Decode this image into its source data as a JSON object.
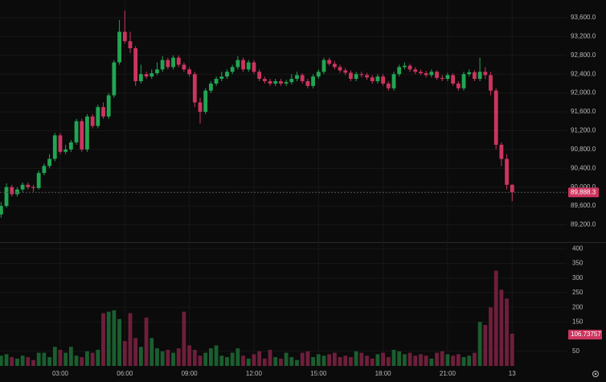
{
  "chart_data": {
    "type": "candlestick",
    "up_color": "#22a553",
    "down_color": "#cc355f",
    "x": [
      0.25,
      0.5,
      0.75,
      1,
      1.25,
      1.5,
      1.75,
      2,
      2.25,
      2.5,
      2.75,
      3,
      3.25,
      3.5,
      3.75,
      4,
      4.25,
      4.5,
      4.75,
      5,
      5.25,
      5.5,
      5.75,
      6,
      6.25,
      6.5,
      6.75,
      7,
      7.25,
      7.5,
      7.75,
      8,
      8.25,
      8.5,
      8.75,
      9,
      9.25,
      9.5,
      9.75,
      10,
      10.25,
      10.5,
      10.75,
      11,
      11.25,
      11.5,
      11.75,
      12,
      12.25,
      12.5,
      12.75,
      13,
      13.25,
      13.5,
      13.75,
      14,
      14.25,
      14.5,
      14.75,
      15,
      15.25,
      15.5,
      15.75,
      16,
      16.25,
      16.5,
      16.75,
      17,
      17.25,
      17.5,
      17.75,
      18,
      18.25,
      18.5,
      18.75,
      19,
      19.25,
      19.5,
      19.75,
      20,
      20.25,
      20.5,
      20.75,
      21,
      21.25,
      21.5,
      21.75,
      22,
      22.25,
      22.5,
      22.75,
      23,
      23.25,
      23.5,
      23.75,
      24
    ],
    "open": [
      89420,
      89600,
      90000,
      89850,
      89950,
      90050,
      90000,
      89980,
      90300,
      90450,
      90600,
      91100,
      90750,
      90800,
      90950,
      91400,
      90800,
      91500,
      91300,
      91700,
      91500,
      91950,
      92650,
      93300,
      93100,
      92950,
      92250,
      92400,
      92350,
      92420,
      92500,
      92700,
      92550,
      92750,
      92600,
      92500,
      92400,
      91800,
      91600,
      92050,
      92200,
      92300,
      92350,
      92450,
      92550,
      92700,
      92500,
      92650,
      92450,
      92300,
      92250,
      92200,
      92250,
      92200,
      92230,
      92300,
      92380,
      92250,
      92150,
      92350,
      92450,
      92700,
      92620,
      92550,
      92480,
      92430,
      92300,
      92400,
      92380,
      92330,
      92250,
      92350,
      92200,
      92100,
      92400,
      92550,
      92580,
      92500,
      92450,
      92420,
      92380,
      92450,
      92320,
      92300,
      92380,
      92200,
      92100,
      92400,
      92440,
      92300,
      92450,
      92380,
      92050,
      90900,
      90600,
      90050
    ],
    "high": [
      89680,
      90080,
      90050,
      90000,
      90100,
      90100,
      90050,
      90350,
      90500,
      90700,
      91150,
      91150,
      90900,
      91000,
      91450,
      91450,
      91550,
      91550,
      91750,
      91800,
      92000,
      92700,
      93550,
      93750,
      93300,
      93000,
      92600,
      92450,
      92500,
      92650,
      92780,
      92750,
      92800,
      92800,
      92650,
      92550,
      92450,
      91900,
      92100,
      92250,
      92350,
      92450,
      92500,
      92600,
      92780,
      92750,
      92700,
      92700,
      92500,
      92350,
      92300,
      92300,
      92300,
      92280,
      92400,
      92450,
      92420,
      92300,
      92400,
      92500,
      92750,
      92750,
      92680,
      92600,
      92530,
      92480,
      92450,
      92450,
      92430,
      92380,
      92400,
      92400,
      92250,
      92450,
      92600,
      92650,
      92620,
      92550,
      92500,
      92470,
      92500,
      92480,
      92380,
      92430,
      92420,
      92250,
      92450,
      92500,
      92480,
      92750,
      92550,
      92450,
      92100,
      90950,
      90700,
      90060
    ],
    "low": [
      89350,
      89560,
      89800,
      89800,
      89900,
      89950,
      89900,
      89950,
      90250,
      90400,
      90550,
      90700,
      90700,
      90750,
      90900,
      90750,
      90750,
      91250,
      91250,
      91450,
      91450,
      91900,
      92600,
      93050,
      92850,
      92150,
      92200,
      92300,
      92300,
      92380,
      92450,
      92500,
      92500,
      92550,
      92450,
      92350,
      91700,
      91350,
      91550,
      92000,
      92150,
      92250,
      92300,
      92400,
      92500,
      92450,
      92450,
      92400,
      92250,
      92200,
      92150,
      92150,
      92150,
      92150,
      92180,
      92250,
      92200,
      92100,
      92100,
      92300,
      92400,
      92580,
      92500,
      92430,
      92380,
      92250,
      92250,
      92330,
      92280,
      92200,
      92200,
      92150,
      92050,
      92050,
      92350,
      92500,
      92450,
      92400,
      92380,
      92330,
      92330,
      92280,
      92250,
      92250,
      92150,
      92050,
      92050,
      92350,
      92250,
      92250,
      92300,
      91950,
      90800,
      90450,
      89950,
      89700
    ],
    "close": [
      89600,
      90000,
      89850,
      89950,
      90050,
      90000,
      89980,
      90300,
      90450,
      90600,
      91100,
      90750,
      90800,
      90950,
      91400,
      90800,
      91500,
      91300,
      91700,
      91500,
      91950,
      92650,
      93300,
      93100,
      92950,
      92250,
      92400,
      92350,
      92420,
      92500,
      92700,
      92550,
      92750,
      92600,
      92500,
      92400,
      91800,
      91600,
      92050,
      92200,
      92300,
      92350,
      92450,
      92550,
      92700,
      92500,
      92650,
      92450,
      92300,
      92250,
      92200,
      92250,
      92200,
      92230,
      92300,
      92380,
      92250,
      92150,
      92350,
      92450,
      92700,
      92620,
      92550,
      92480,
      92430,
      92300,
      92400,
      92380,
      92330,
      92250,
      92350,
      92200,
      92100,
      92400,
      92550,
      92580,
      92500,
      92450,
      92420,
      92380,
      92450,
      92320,
      92300,
      92380,
      92200,
      92100,
      92400,
      92440,
      92300,
      92450,
      92380,
      92050,
      90900,
      90600,
      90050,
      89890
    ],
    "xlim": [
      0.2,
      26.53
    ],
    "xticks": [
      {
        "value": 3,
        "label": "03:00"
      },
      {
        "value": 6,
        "label": "06:00"
      },
      {
        "value": 9,
        "label": "09:00"
      },
      {
        "value": 12,
        "label": "12:00"
      },
      {
        "value": 15,
        "label": "15:00"
      },
      {
        "value": 18,
        "label": "18:00"
      },
      {
        "value": 21,
        "label": "21:00"
      },
      {
        "value": 24,
        "label": "13"
      }
    ],
    "ylim": [
      88850,
      93975
    ],
    "yticks": [
      {
        "value": 89200,
        "label": "89,200.0"
      },
      {
        "value": 89600,
        "label": "89,600.0"
      },
      {
        "value": 90000,
        "label": "90,000.0"
      },
      {
        "value": 90400,
        "label": "90,400.0"
      },
      {
        "value": 90800,
        "label": "90,800.0"
      },
      {
        "value": 91200,
        "label": "91,200.0"
      },
      {
        "value": 91600,
        "label": "91,600.0"
      },
      {
        "value": 92000,
        "label": "92,000.0"
      },
      {
        "value": 92400,
        "label": "92,400.0"
      },
      {
        "value": 92800,
        "label": "92,800.0"
      },
      {
        "value": 93200,
        "label": "93,200.0"
      },
      {
        "value": 93600,
        "label": "93,600.0"
      }
    ],
    "last_price": {
      "value": 89888.3,
      "label": "89,888.3"
    },
    "volume": {
      "up_color": "#1b5e2f",
      "down_color": "#6e1f3b",
      "values": [
        35,
        40,
        30,
        25,
        35,
        30,
        20,
        45,
        45,
        30,
        65,
        55,
        45,
        65,
        35,
        30,
        50,
        45,
        55,
        180,
        185,
        190,
        160,
        85,
        180,
        95,
        65,
        165,
        95,
        60,
        50,
        55,
        45,
        60,
        185,
        70,
        55,
        35,
        45,
        60,
        70,
        35,
        30,
        45,
        60,
        35,
        25,
        40,
        50,
        25,
        55,
        30,
        25,
        45,
        30,
        20,
        45,
        50,
        30,
        40,
        35,
        40,
        45,
        30,
        35,
        30,
        50,
        45,
        35,
        25,
        40,
        45,
        30,
        55,
        50,
        40,
        45,
        35,
        40,
        35,
        25,
        45,
        50,
        40,
        35,
        40,
        30,
        35,
        45,
        150,
        140,
        200,
        325,
        260,
        230,
        110
      ],
      "ylim": [
        0,
        420
      ],
      "yticks": [
        50,
        150,
        200,
        250,
        300,
        350,
        400
      ],
      "last": {
        "value": 106.73757,
        "label": "106.73757"
      }
    }
  }
}
